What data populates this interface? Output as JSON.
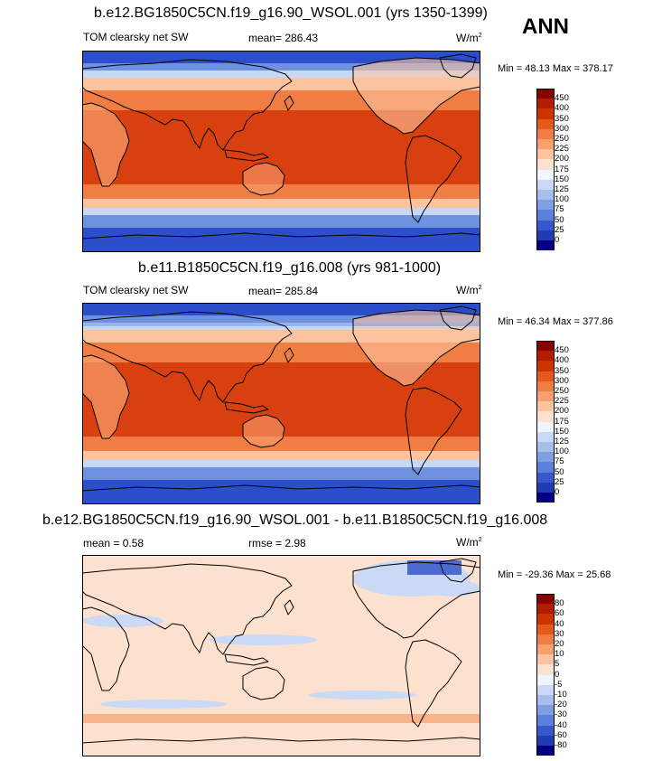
{
  "ann_label": "ANN",
  "panels": [
    {
      "title": "b.e12.BG1850C5CN.f19_g16.90_WSOL.001 (yrs 1350-1399)",
      "left_label": "TOM clearsky net SW",
      "center_label": "mean= 286.43",
      "units": "W/m",
      "units_sup": "2",
      "minmax": "Min =  48.13 Max = 378.17",
      "colorbar_labels": [
        "450",
        "400",
        "350",
        "300",
        "250",
        "225",
        "200",
        "175",
        "150",
        "125",
        "100",
        "75",
        "50",
        "25",
        "0"
      ],
      "colorbar_colors": [
        "#8b0000",
        "#b31c00",
        "#cc3300",
        "#e55a1a",
        "#f07d44",
        "#f7a06e",
        "#fbc49f",
        "#fde1cf",
        "#f0f5ff",
        "#cad9f5",
        "#a6bfec",
        "#7f9fe3",
        "#5a80db",
        "#3558cc",
        "#1f3cb5",
        "#000080"
      ]
    },
    {
      "title": "b.e11.B1850C5CN.f19_g16.008 (yrs 981-1000)",
      "left_label": "TOM clearsky net SW",
      "center_label": "mean= 285.84",
      "units": "W/m",
      "units_sup": "2",
      "minmax": "Min =  46.34 Max = 377.86",
      "colorbar_labels": [
        "450",
        "400",
        "350",
        "300",
        "250",
        "225",
        "200",
        "175",
        "150",
        "125",
        "100",
        "75",
        "50",
        "25",
        "0"
      ],
      "colorbar_colors": [
        "#8b0000",
        "#b31c00",
        "#cc3300",
        "#e55a1a",
        "#f07d44",
        "#f7a06e",
        "#fbc49f",
        "#fde1cf",
        "#f0f5ff",
        "#cad9f5",
        "#a6bfec",
        "#7f9fe3",
        "#5a80db",
        "#3558cc",
        "#1f3cb5",
        "#000080"
      ]
    },
    {
      "title": "b.e12.BG1850C5CN.f19_g16.90_WSOL.001 - b.e11.B1850C5CN.f19_g16.008",
      "left_label": "mean =   0.58",
      "center_label": "rmse =   2.98",
      "units": "W/m",
      "units_sup": "2",
      "minmax": "Min = -29.36 Max =  25.68",
      "colorbar_labels": [
        "80",
        "60",
        "40",
        "30",
        "20",
        "10",
        "5",
        "0",
        "-5",
        "-10",
        "-20",
        "-30",
        "-40",
        "-60",
        "-80"
      ],
      "colorbar_colors": [
        "#8b0000",
        "#b31c00",
        "#cc3300",
        "#e55a1a",
        "#f07d44",
        "#f7a06e",
        "#fbc49f",
        "#fde1cf",
        "#f0f5ff",
        "#cad9f5",
        "#a6bfec",
        "#7f9fe3",
        "#5a80db",
        "#3558cc",
        "#1f3cb5",
        "#000080"
      ]
    }
  ],
  "map_colors": {
    "sw_polar": "#2c4fc9",
    "sw_subpolar": "#6e92e0",
    "sw_band_light": "#c8d8f4",
    "sw_midlat": "#fbc49f",
    "sw_subtrop": "#f07d44",
    "sw_trop": "#d94010",
    "sw_land_bright": "#f7a06e",
    "diff_base": "#fde1cf",
    "diff_neg": "#cad9f5",
    "diff_pos": "#f7a06e",
    "coast": "#000000"
  }
}
